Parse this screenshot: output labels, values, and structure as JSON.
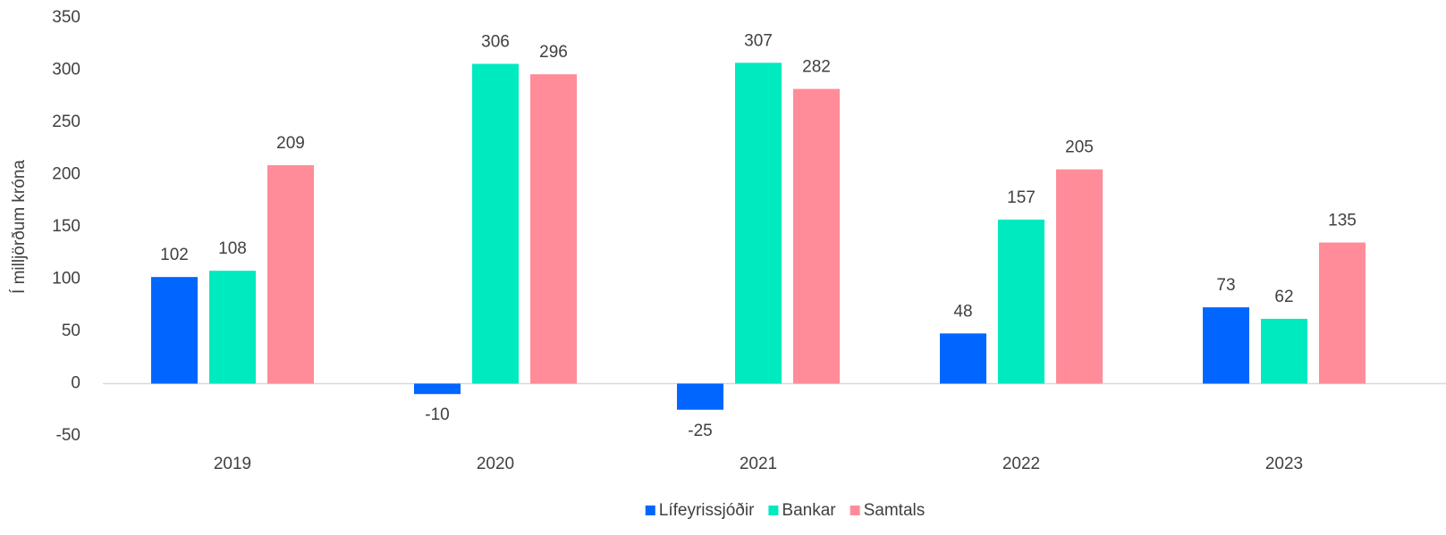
{
  "chart_data": {
    "type": "bar",
    "y_label": "Í milljörðum króna",
    "categories": [
      "2019",
      "2020",
      "2021",
      "2022",
      "2023"
    ],
    "series": [
      {
        "name": "Lífeyrissjóðir",
        "color": "#0066ff",
        "values": [
          102,
          -10,
          -25,
          48,
          73
        ]
      },
      {
        "name": "Bankar",
        "color": "#00eac0",
        "values": [
          108,
          306,
          307,
          157,
          62
        ]
      },
      {
        "name": "Samtals",
        "color": "#ff8c98",
        "values": [
          209,
          296,
          282,
          205,
          135
        ]
      }
    ],
    "ylim": [
      -50,
      350
    ],
    "yticks": [
      -50,
      0,
      50,
      100,
      150,
      200,
      250,
      300,
      350
    ],
    "grid": false,
    "legend": "bottom"
  }
}
